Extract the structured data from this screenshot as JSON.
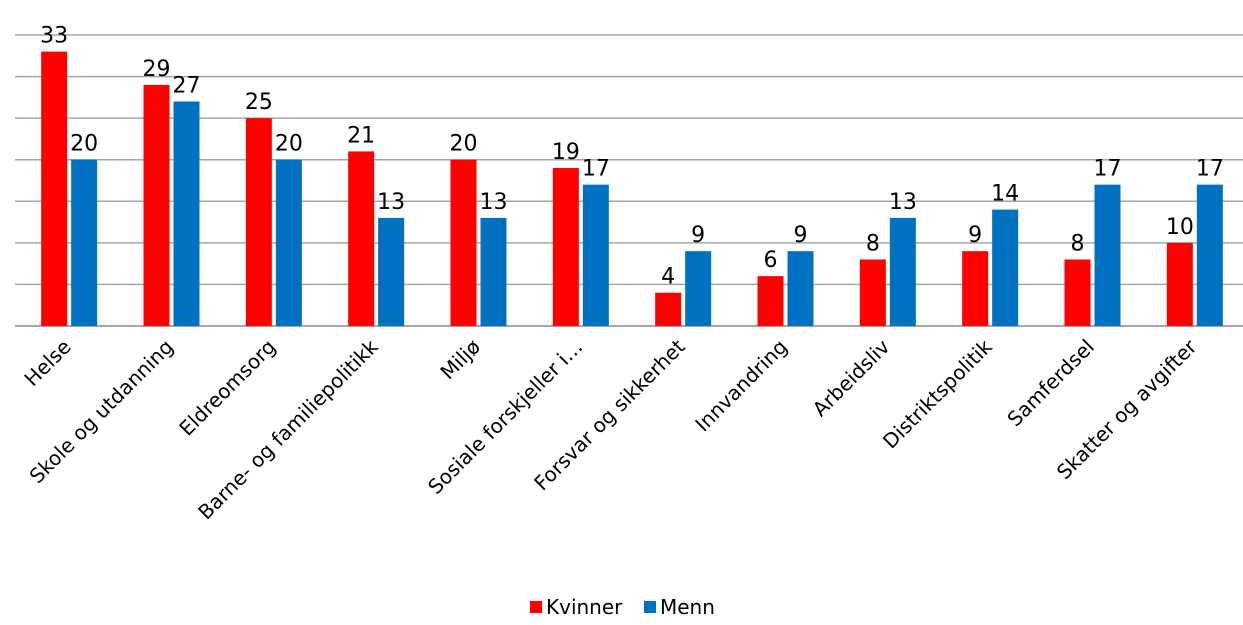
{
  "chart_data": {
    "type": "bar",
    "title": "",
    "xlabel": "",
    "ylabel": "",
    "ylim": [
      0,
      35
    ],
    "grid": true,
    "legend_position": "bottom",
    "categories": [
      "Helse",
      "Skole og utdanning",
      "Eldreomsorg",
      "Barne- og familiepolitikk",
      "Miljø",
      "Sosiale forskjeller i…",
      "Forsvar og sikkerhet",
      "Innvandring",
      "Arbeidsliv",
      "Distriktspolitik",
      "Samferdsel",
      "Skatter og avgifter"
    ],
    "series": [
      {
        "name": "Kvinner",
        "color": "#ff0000",
        "values": [
          33,
          29,
          25,
          21,
          20,
          19,
          4,
          6,
          8,
          9,
          8,
          10
        ],
        "labels": [
          "33",
          "29",
          "25",
          "21",
          "20",
          "19",
          "4",
          "6",
          "8",
          "9",
          "8",
          "10"
        ]
      },
      {
        "name": "Menn",
        "color": "#0070c0",
        "values": [
          20,
          27,
          20,
          13,
          13,
          17,
          9,
          9,
          13,
          14,
          17,
          17
        ],
        "labels": [
          "20",
          "27",
          "20",
          "13",
          "13",
          "17",
          "9",
          "9",
          "13",
          "14",
          "17",
          "17"
        ]
      }
    ]
  }
}
